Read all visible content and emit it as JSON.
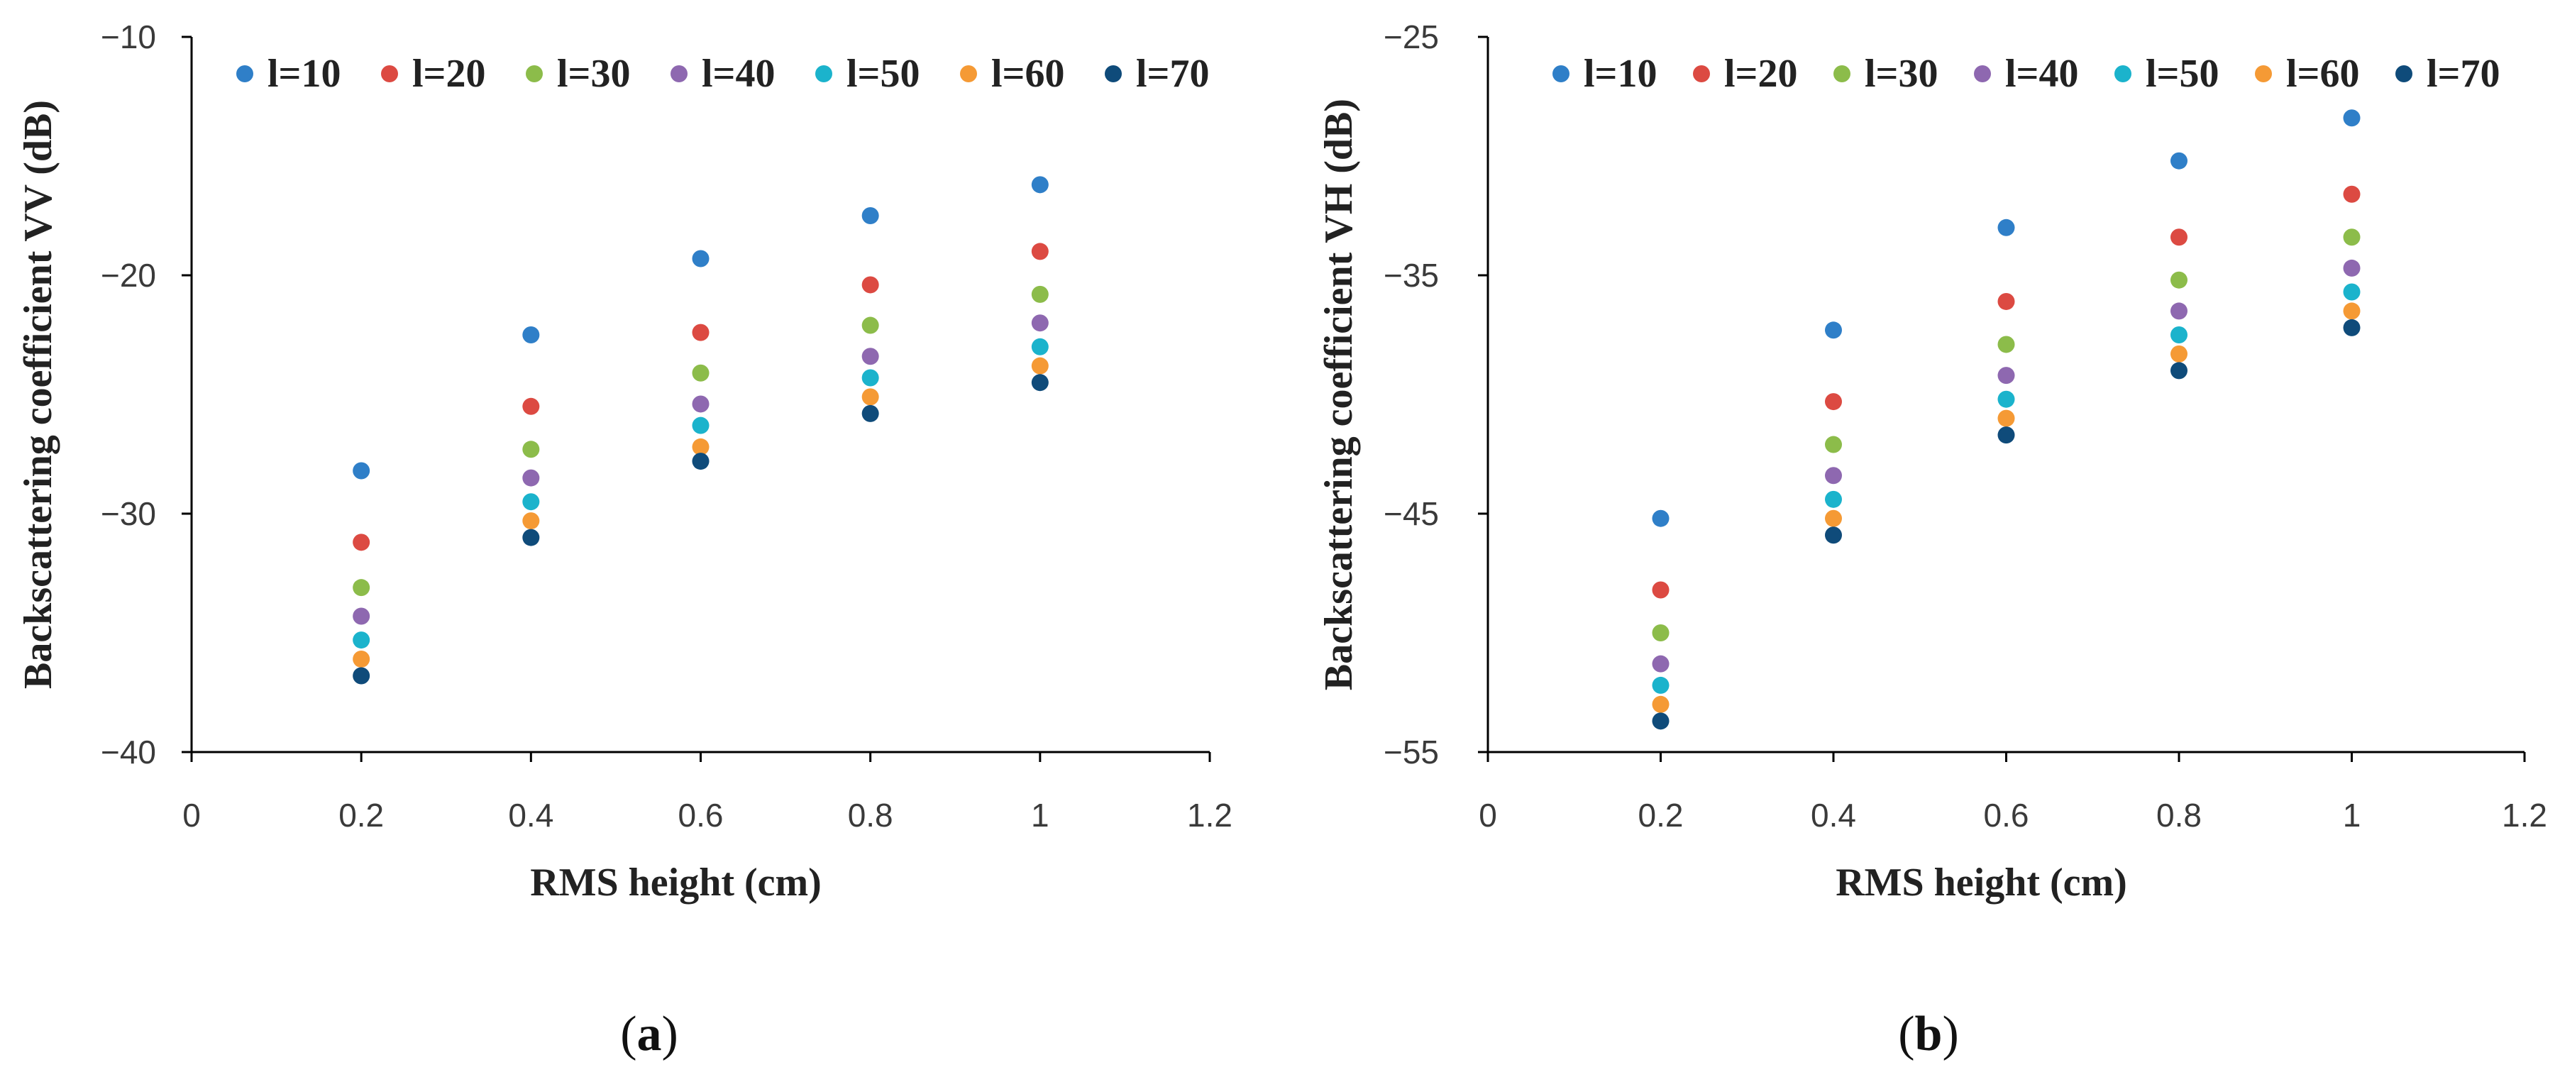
{
  "colors": {
    "l10": "#2f7fc8",
    "l20": "#dc4a42",
    "l30": "#8cbc4a",
    "l40": "#8e68b0",
    "l50": "#1bb3cc",
    "l60": "#f59a35",
    "l70": "#0f4b7a"
  },
  "chart_data": [
    {
      "id": "a",
      "type": "scatter",
      "panel_label": "a",
      "title": "",
      "xlabel": "RMS height (cm)",
      "ylabel": "Backscattering coefficient  VV (dB)",
      "xlim": [
        0,
        1.2
      ],
      "ylim": [
        -40,
        -10
      ],
      "x_ticks": [
        0,
        0.2,
        0.4,
        0.6,
        0.8,
        1,
        1.2
      ],
      "x_tick_labels": [
        "0",
        "0.2",
        "0.4",
        "0.6",
        "0.8",
        "1",
        "1.2"
      ],
      "y_ticks": [
        -10,
        -20,
        -30,
        -40
      ],
      "y_tick_labels": [
        "−10",
        "−20",
        "−30",
        "−40"
      ],
      "legend_position": "top",
      "x": [
        0.2,
        0.4,
        0.6,
        0.8,
        1.0
      ],
      "series": [
        {
          "name": "l=10",
          "color_key": "l10",
          "values": [
            -28.2,
            -22.5,
            -19.3,
            -17.5,
            -16.2
          ]
        },
        {
          "name": "l=20",
          "color_key": "l20",
          "values": [
            -31.2,
            -25.5,
            -22.4,
            -20.4,
            -19.0
          ]
        },
        {
          "name": "l=30",
          "color_key": "l30",
          "values": [
            -33.1,
            -27.3,
            -24.1,
            -22.1,
            -20.8
          ]
        },
        {
          "name": "l=40",
          "color_key": "l40",
          "values": [
            -34.3,
            -28.5,
            -25.4,
            -23.4,
            -22.0
          ]
        },
        {
          "name": "l=50",
          "color_key": "l50",
          "values": [
            -35.3,
            -29.5,
            -26.3,
            -24.3,
            -23.0
          ]
        },
        {
          "name": "l=60",
          "color_key": "l60",
          "values": [
            -36.1,
            -30.3,
            -27.2,
            -25.1,
            -23.8
          ]
        },
        {
          "name": "l=70",
          "color_key": "l70",
          "values": [
            -36.8,
            -31.0,
            -27.8,
            -25.8,
            -24.5
          ]
        }
      ]
    },
    {
      "id": "b",
      "type": "scatter",
      "panel_label": "b",
      "title": "",
      "xlabel": "RMS height (cm)",
      "ylabel": "Backscattering coefficient  VH (dB)",
      "xlim": [
        0,
        1.2
      ],
      "ylim": [
        -55,
        -25
      ],
      "x_ticks": [
        0,
        0.2,
        0.4,
        0.6,
        0.8,
        1,
        1.2
      ],
      "x_tick_labels": [
        "0",
        "0.2",
        "0.4",
        "0.6",
        "0.8",
        "1",
        "1.2"
      ],
      "y_ticks": [
        -25,
        -35,
        -45,
        -55
      ],
      "y_tick_labels": [
        "−25",
        "−35",
        "−45",
        "−55"
      ],
      "legend_position": "top",
      "x": [
        0.2,
        0.4,
        0.6,
        0.8,
        1.0
      ],
      "series": [
        {
          "name": "l=10",
          "color_key": "l10",
          "values": [
            -45.2,
            -37.3,
            -33.0,
            -30.2,
            -28.4
          ]
        },
        {
          "name": "l=20",
          "color_key": "l20",
          "values": [
            -48.2,
            -40.3,
            -36.1,
            -33.4,
            -31.6
          ]
        },
        {
          "name": "l=30",
          "color_key": "l30",
          "values": [
            -50.0,
            -42.1,
            -37.9,
            -35.2,
            -33.4
          ]
        },
        {
          "name": "l=40",
          "color_key": "l40",
          "values": [
            -51.3,
            -43.4,
            -39.2,
            -36.5,
            -34.7
          ]
        },
        {
          "name": "l=50",
          "color_key": "l50",
          "values": [
            -52.2,
            -44.4,
            -40.2,
            -37.5,
            -35.7
          ]
        },
        {
          "name": "l=60",
          "color_key": "l60",
          "values": [
            -53.0,
            -45.2,
            -41.0,
            -38.3,
            -36.5
          ]
        },
        {
          "name": "l=70",
          "color_key": "l70",
          "values": [
            -53.7,
            -45.9,
            -41.7,
            -39.0,
            -37.2
          ]
        }
      ]
    }
  ]
}
